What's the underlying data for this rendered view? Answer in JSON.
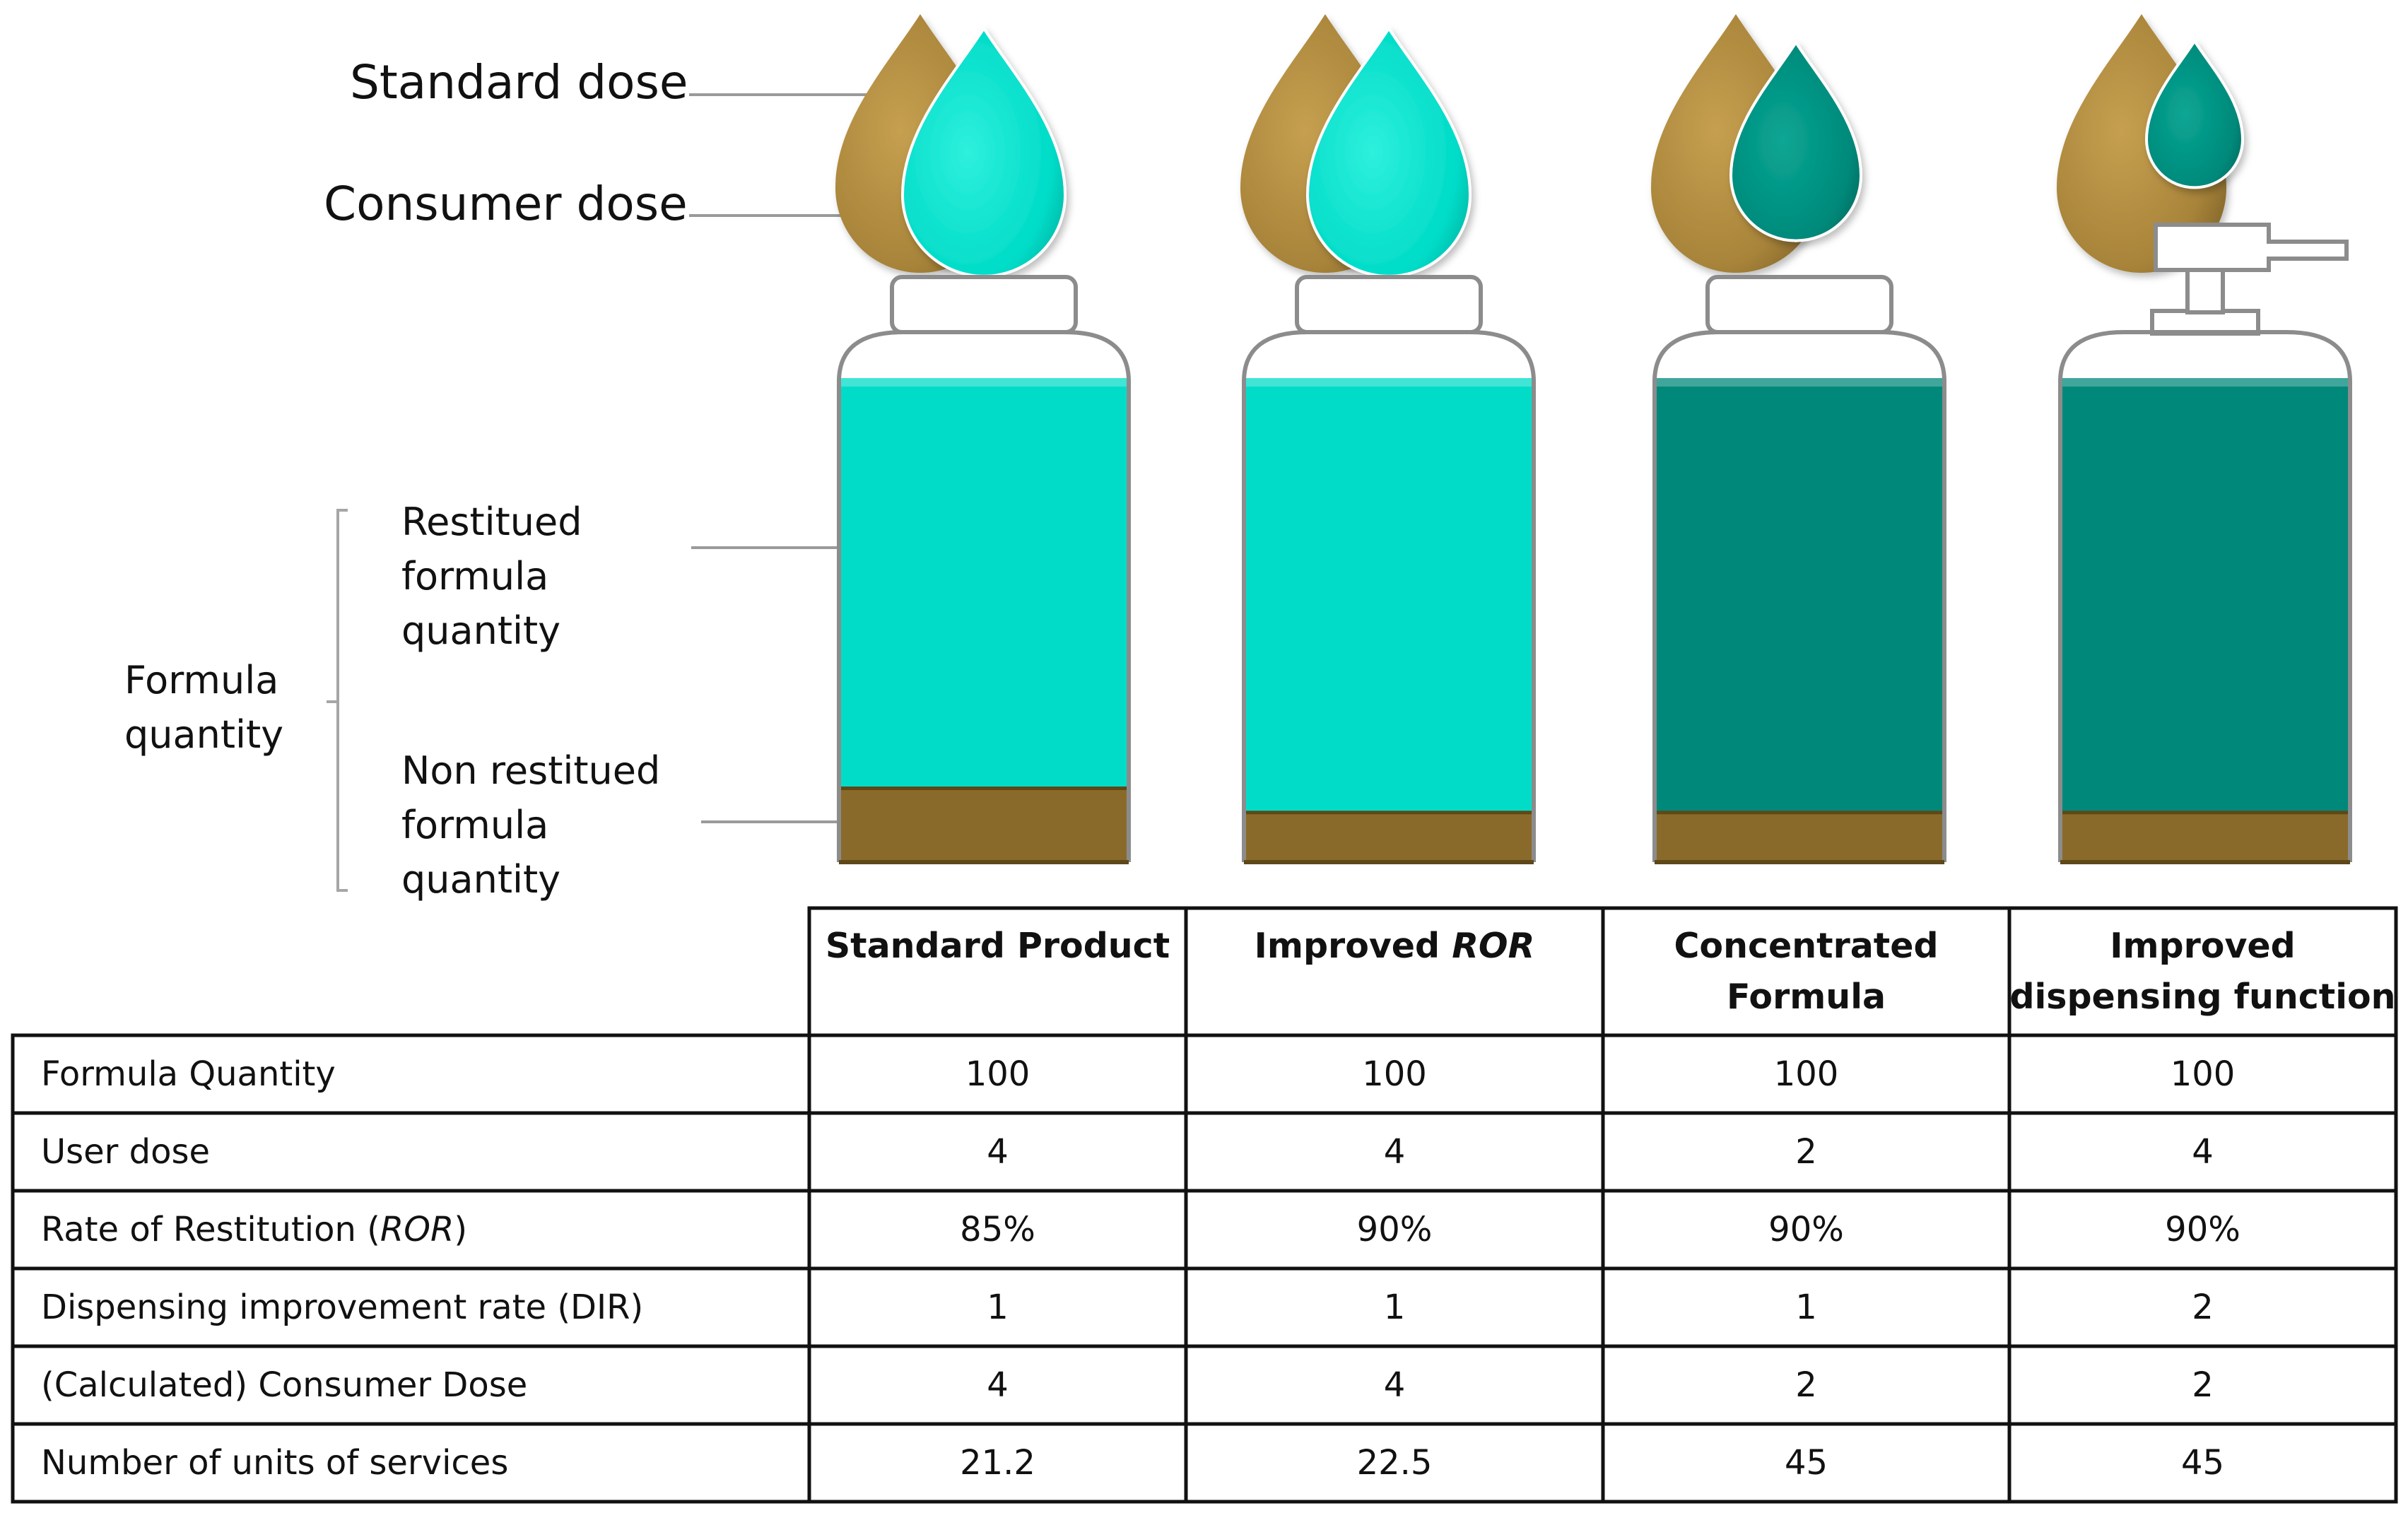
{
  "legend": {
    "standard_dose": "Standard dose",
    "consumer_dose": "Consumer dose",
    "restitued_line1": "Restitued",
    "restitued_line2": "formula",
    "restitued_line3": "quantity",
    "formula_quantity_line1": "Formula",
    "formula_quantity_line2": "quantity",
    "non_restitued_line1": "Non restitued",
    "non_restitued_line2": "formula",
    "non_restitued_line3": "quantity"
  },
  "colors": {
    "standard_drop": "#A8843A",
    "light_teal": "#00DCC8",
    "dark_teal": "#00897A",
    "residue_brown": "#8A6A2A",
    "bottle_outline": "#8C8C8C"
  },
  "scenarios": [
    {
      "header_text": "Standard Product",
      "header_italic": "",
      "header_line2": "",
      "formula_color": "light",
      "residue_fraction": 0.15,
      "dispenser": "cap"
    },
    {
      "header_text": "Improved ",
      "header_italic": "ROR",
      "header_line2": "",
      "formula_color": "light",
      "residue_fraction": 0.1,
      "dispenser": "cap"
    },
    {
      "header_text": "Concentrated",
      "header_italic": "",
      "header_line2": "Formula",
      "formula_color": "dark",
      "residue_fraction": 0.1,
      "dispenser": "cap"
    },
    {
      "header_text": "Improved",
      "header_italic": "",
      "header_line2": "dispensing function",
      "formula_color": "dark",
      "residue_fraction": 0.1,
      "dispenser": "pump"
    }
  ],
  "table": {
    "rows": [
      {
        "label": "Formula Quantity",
        "label_italic": "",
        "label_suffix": "",
        "values": [
          "100",
          "100",
          "100",
          "100"
        ]
      },
      {
        "label": "User dose",
        "label_italic": "",
        "label_suffix": "",
        "values": [
          "4",
          "4",
          "2",
          "4"
        ]
      },
      {
        "label": "Rate of Restitution (",
        "label_italic": "ROR",
        "label_suffix": ")",
        "values": [
          "85%",
          "90%",
          "90%",
          "90%"
        ]
      },
      {
        "label": "Dispensing improvement rate (DIR)",
        "label_italic": "",
        "label_suffix": "",
        "values": [
          "1",
          "1",
          "1",
          "2"
        ]
      },
      {
        "label": "(Calculated) Consumer Dose",
        "label_italic": "",
        "label_suffix": "",
        "values": [
          "4",
          "4",
          "2",
          "2"
        ]
      },
      {
        "label": "Number of units of services",
        "label_italic": "",
        "label_suffix": "",
        "values": [
          "21.2",
          "22.5",
          "45",
          "45"
        ]
      }
    ]
  }
}
